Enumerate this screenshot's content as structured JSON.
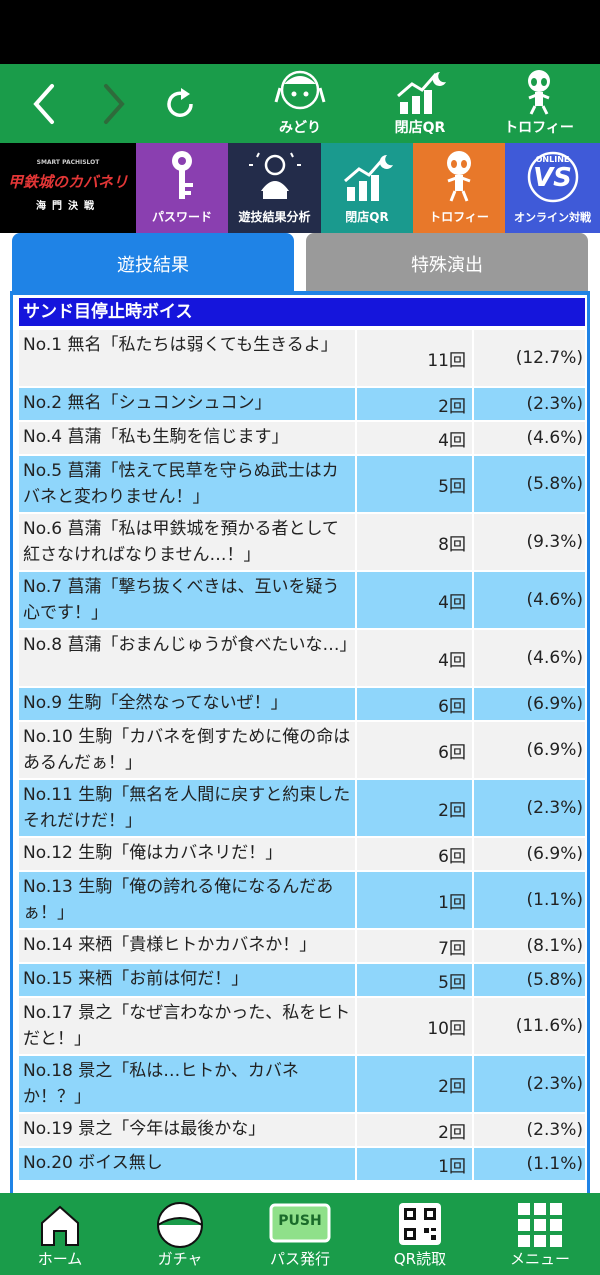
{
  "nav": {
    "back_icon": "chevron-left-icon",
    "forward_icon": "chevron-right-icon",
    "reload_icon": "reload-icon",
    "midori_label": "みどり",
    "closing_qr_label": "閉店QR",
    "trophy_label": "トロフィー"
  },
  "tiles": {
    "logo_title": "甲鉄城のカバネリ",
    "logo_subtitle": "海門決戦",
    "logo_small": "SMART PACHISLOT",
    "password": "パスワード",
    "analysis": "遊技結果分析",
    "closing_qr": "閉店QR",
    "trophy": "トロフィー",
    "online": "オンライン対戦",
    "vs_online": "ONLINE",
    "vs_text": "VS"
  },
  "tabs": {
    "result": "遊技結果",
    "special": "特殊演出"
  },
  "section": {
    "title": "サンド目停止時ボイス"
  },
  "rows": [
    {
      "name": "No.1 無名「私たちは弱くても生きるよ」",
      "count": "11回",
      "pct": "(12.7%)"
    },
    {
      "name": "No.2 無名「シュコンシュコン」",
      "count": "2回",
      "pct": "(2.3%)"
    },
    {
      "name": "No.4 菖蒲「私も生駒を信じます」",
      "count": "4回",
      "pct": "(4.6%)"
    },
    {
      "name": "No.5 菖蒲「怯えて民草を守らぬ武士はカバネと変わりません！」",
      "count": "5回",
      "pct": "(5.8%)"
    },
    {
      "name": "No.6 菖蒲「私は甲鉄城を預かる者として紅さなければなりません…！」",
      "count": "8回",
      "pct": "(9.3%)"
    },
    {
      "name": "No.7 菖蒲「撃ち抜くべきは、互いを疑う心です！」",
      "count": "4回",
      "pct": "(4.6%)"
    },
    {
      "name": "No.8 菖蒲「おまんじゅうが食べたいな…」",
      "count": "4回",
      "pct": "(4.6%)"
    },
    {
      "name": "No.9 生駒「全然なってないぜ！」",
      "count": "6回",
      "pct": "(6.9%)"
    },
    {
      "name": "No.10 生駒「カバネを倒すために俺の命はあるんだぁ！」",
      "count": "6回",
      "pct": "(6.9%)"
    },
    {
      "name": "No.11 生駒「無名を人間に戻すと約束した　それだけだ！」",
      "count": "2回",
      "pct": "(2.3%)"
    },
    {
      "name": "No.12 生駒「俺はカバネリだ！」",
      "count": "6回",
      "pct": "(6.9%)"
    },
    {
      "name": "No.13 生駒「俺の誇れる俺になるんだあぁ！」",
      "count": "1回",
      "pct": "(1.1%)"
    },
    {
      "name": "No.14 来栖「貴様ヒトかカバネか！」",
      "count": "7回",
      "pct": "(8.1%)"
    },
    {
      "name": "No.15 来栖「お前は何だ！」",
      "count": "5回",
      "pct": "(5.8%)"
    },
    {
      "name": "No.17 景之「なぜ言わなかった、私をヒトだと！」",
      "count": "10回",
      "pct": "(11.6%)"
    },
    {
      "name": "No.18 景之「私は…ヒトか、カバネか！？」",
      "count": "2回",
      "pct": "(2.3%)"
    },
    {
      "name": "No.19 景之「今年は最後かな」",
      "count": "2回",
      "pct": "(2.3%)"
    },
    {
      "name": "No.20 ボイス無し",
      "count": "1回",
      "pct": "(1.1%)"
    }
  ],
  "bottom_nav": {
    "home": "ホーム",
    "gacha": "ガチャ",
    "pass": "パス発行",
    "push": "PUSH",
    "qr_read": "QR読取",
    "menu": "メニュー"
  }
}
